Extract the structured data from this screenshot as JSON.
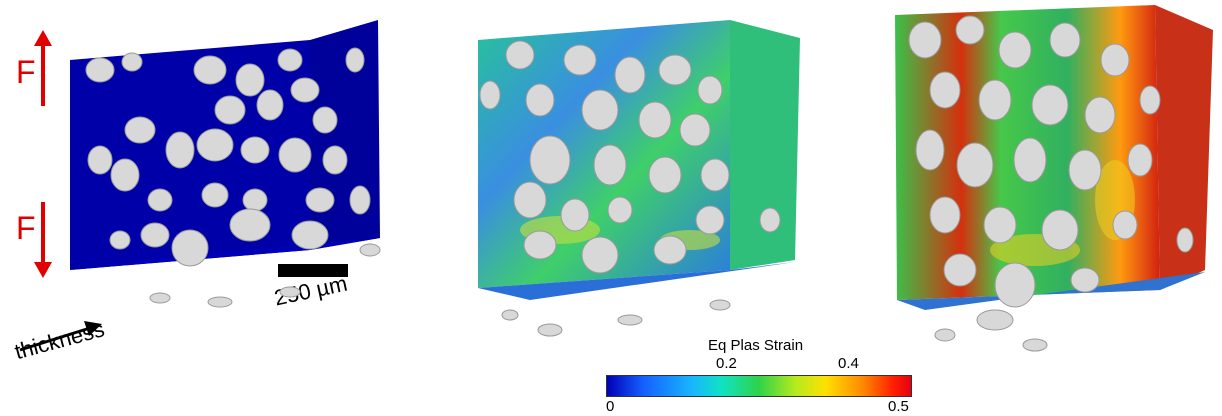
{
  "labels": {
    "force_top": "F",
    "force_bottom": "F",
    "scale_bar": "250 µm",
    "thickness": "thickness"
  },
  "colorbar": {
    "title": "Eq Plas Strain",
    "tick_min": "0",
    "tick_02": "0.2",
    "tick_04": "0.4",
    "tick_max": "0.5"
  },
  "colors": {
    "panel1_background": "#0000a8",
    "particles": "#d8d8d8",
    "force_arrows": "#e00000"
  }
}
